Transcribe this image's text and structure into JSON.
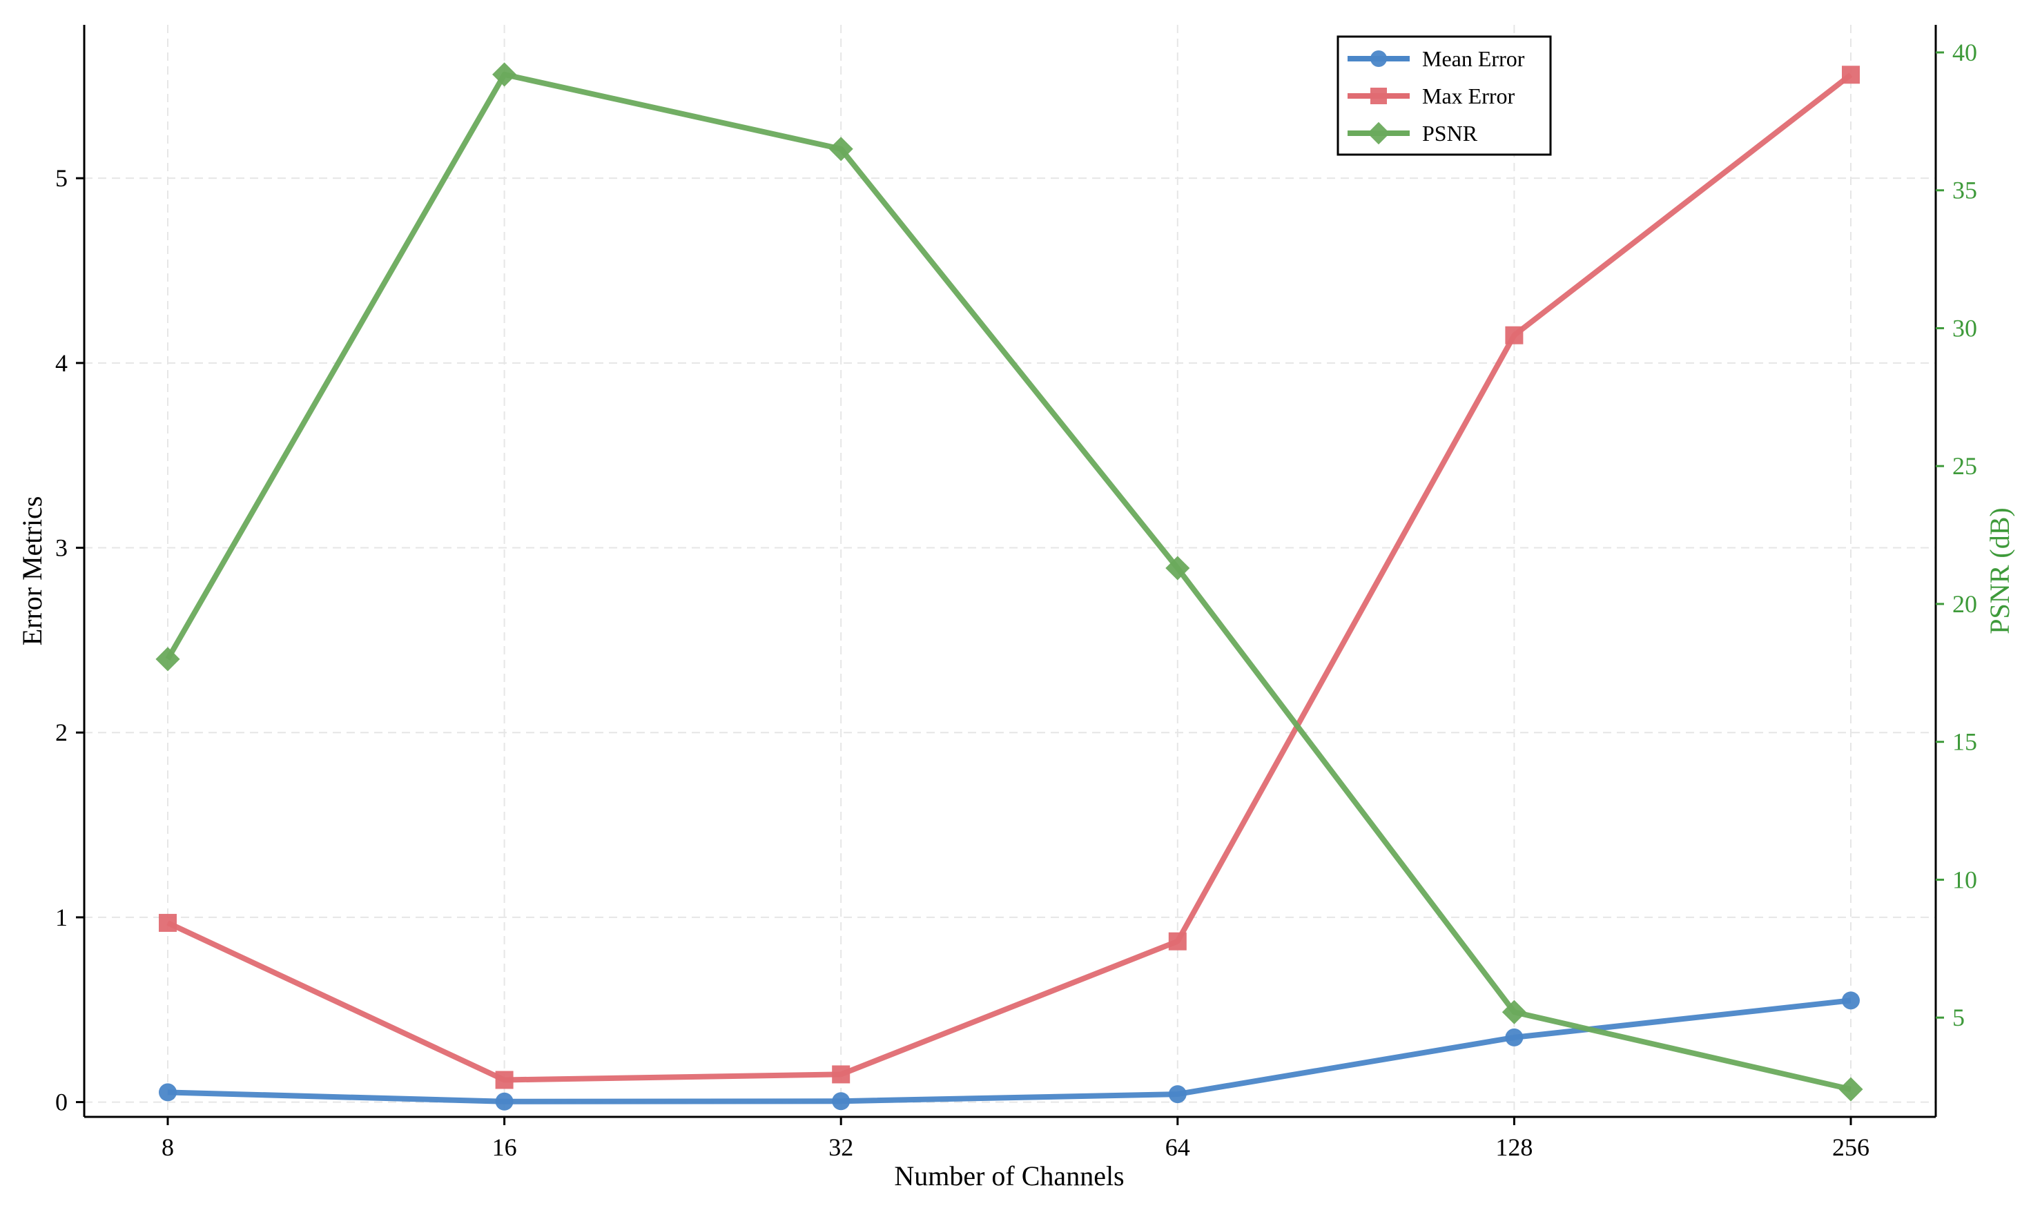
{
  "chart_data": {
    "type": "line",
    "categories": [
      "8",
      "16",
      "32",
      "64",
      "128",
      "256"
    ],
    "xlabel": "Number of Channels",
    "ylabel": "Error Metrics",
    "ylabel_right": "PSNR (dB)",
    "ylim": [
      -0.08,
      5.83
    ],
    "ylim_right": [
      1.4,
      41.0
    ],
    "yticks": [
      0,
      1,
      2,
      3,
      4,
      5
    ],
    "yticks_right": [
      5,
      10,
      15,
      20,
      25,
      30,
      35,
      40
    ],
    "grid": true,
    "legend_position": "top-right",
    "series": [
      {
        "name": "Mean Error",
        "axis": "left",
        "marker": "circle",
        "color": "#4a86c8",
        "values": [
          0.053,
          0.003,
          0.005,
          0.043,
          0.35,
          0.55
        ]
      },
      {
        "name": "Max Error",
        "axis": "left",
        "marker": "square",
        "color": "#e06c72",
        "values": [
          0.97,
          0.12,
          0.15,
          0.87,
          4.15,
          5.56
        ]
      },
      {
        "name": "PSNR",
        "axis": "right",
        "marker": "diamond",
        "color": "#6aaa5c",
        "values": [
          18.0,
          39.2,
          36.5,
          21.3,
          5.2,
          2.4
        ]
      }
    ]
  }
}
